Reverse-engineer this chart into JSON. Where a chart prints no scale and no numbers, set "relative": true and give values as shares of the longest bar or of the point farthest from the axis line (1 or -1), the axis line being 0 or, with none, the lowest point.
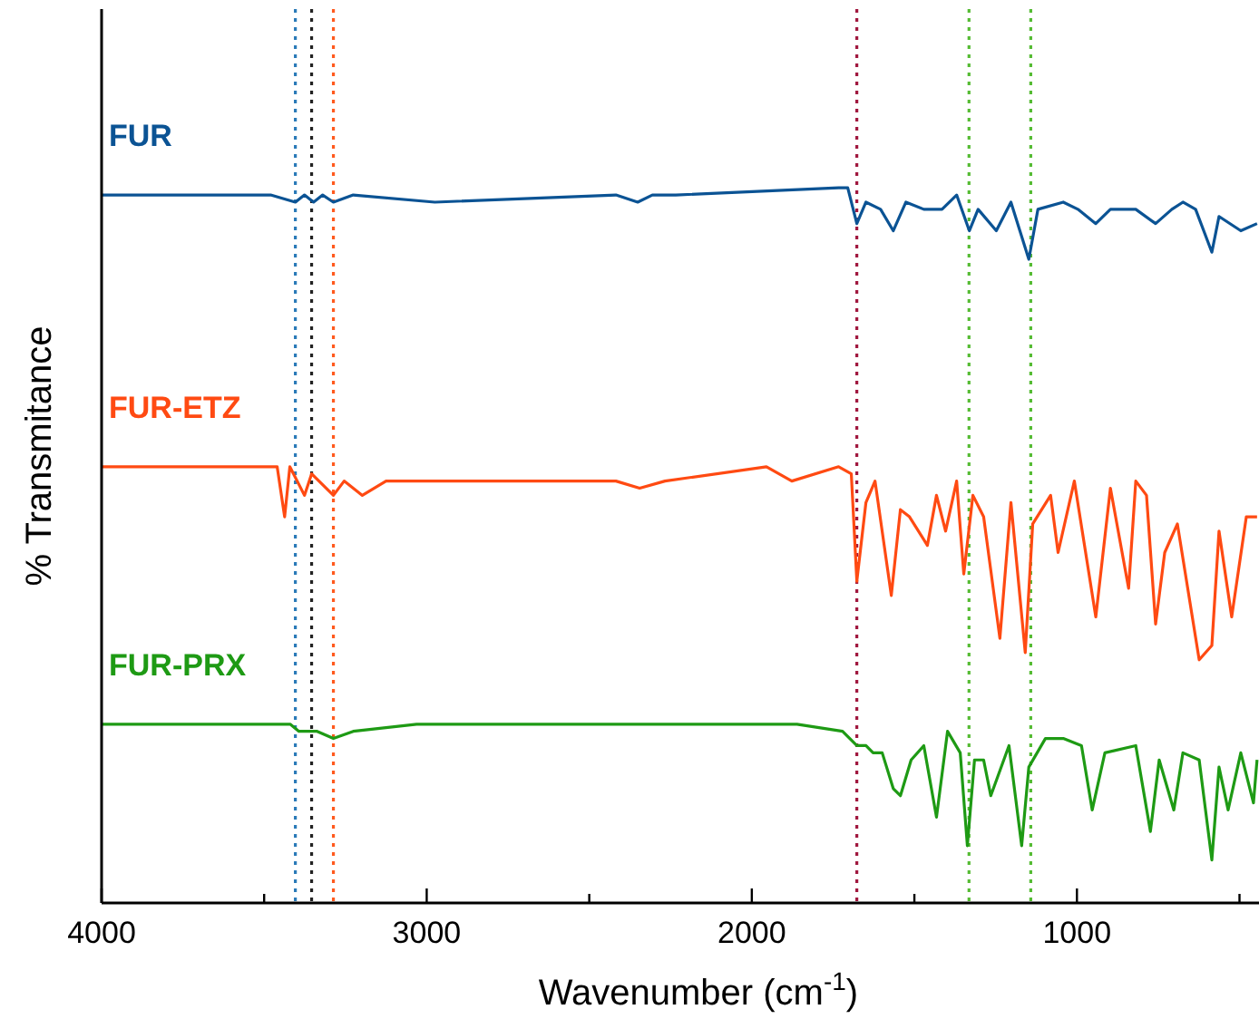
{
  "chart_data": {
    "type": "line",
    "relative": true,
    "xlabel": "Wavenumber (cm$^{-1}$)",
    "ylabel": "% Transmitance",
    "xlim": [
      4000,
      440
    ],
    "xticks": [
      4000,
      {
        "value": 3500,
        "label": null
      },
      3000,
      {
        "value": 2500,
        "label": null
      },
      2000,
      {
        "value": 1500,
        "label": null
      },
      1000,
      {
        "value": 500,
        "label": null
      }
    ],
    "grid": false,
    "marker": "none",
    "line_style": "solid",
    "tick_labels": "x",
    "ref_lines": [
      {
        "axis": "x",
        "value": 3404,
        "color": "#2a7ab8",
        "line_style": "dotted"
      },
      {
        "axis": "x",
        "value": 3354,
        "color": "#222222",
        "line_style": "dotted"
      },
      {
        "axis": "x",
        "value": 3287,
        "color": "#ff5a1e",
        "line_style": "dotted"
      },
      {
        "axis": "x",
        "value": 1677,
        "color": "#a0173e",
        "line_style": "dotted"
      },
      {
        "axis": "x",
        "value": 1332,
        "color": "#55bb33",
        "line_style": "dotted"
      },
      {
        "axis": "x",
        "value": 1142,
        "color": "#55bb33",
        "line_style": "dotted"
      }
    ],
    "series": [
      {
        "name": "FUR",
        "color": "#0b5394",
        "x": [
          4000,
          3480,
          3404,
          3376,
          3348,
          3320,
          3287,
          3226,
          2975,
          2418,
          2351,
          2306,
          2234,
          1733,
          1705,
          1677,
          1649,
          1604,
          1565,
          1526,
          1471,
          1415,
          1370,
          1331,
          1304,
          1248,
          1203,
          1148,
          1120,
          1042,
          997,
          942,
          897,
          819,
          758,
          708,
          674,
          635,
          585,
          563,
          496,
          446
        ],
        "values": [
          0.99,
          0.99,
          0.98,
          0.99,
          0.98,
          0.99,
          0.98,
          0.99,
          0.98,
          0.99,
          0.98,
          0.99,
          0.99,
          1.0,
          1.0,
          0.95,
          0.98,
          0.97,
          0.94,
          0.98,
          0.97,
          0.97,
          0.99,
          0.94,
          0.97,
          0.94,
          0.98,
          0.9,
          0.97,
          0.98,
          0.97,
          0.95,
          0.97,
          0.97,
          0.95,
          0.97,
          0.98,
          0.97,
          0.91,
          0.96,
          0.94,
          0.95
        ]
      },
      {
        "name": "FUR-ETZ",
        "color": "#ff4a12",
        "x": [
          4000,
          3460,
          3437,
          3421,
          3376,
          3354,
          3287,
          3254,
          3198,
          3125,
          2986,
          2791,
          2418,
          2345,
          2267,
          1955,
          1877,
          1733,
          1694,
          1677,
          1649,
          1621,
          1571,
          1543,
          1515,
          1460,
          1432,
          1404,
          1370,
          1348,
          1320,
          1287,
          1237,
          1203,
          1159,
          1136,
          1081,
          1058,
          1008,
          942,
          897,
          841,
          819,
          786,
          758,
          730,
          691,
          624,
          585,
          563,
          524,
          479,
          446
        ],
        "values": [
          0.61,
          0.61,
          0.54,
          0.61,
          0.57,
          0.6,
          0.57,
          0.59,
          0.57,
          0.59,
          0.59,
          0.59,
          0.59,
          0.58,
          0.59,
          0.61,
          0.59,
          0.61,
          0.6,
          0.45,
          0.56,
          0.59,
          0.43,
          0.55,
          0.54,
          0.5,
          0.57,
          0.52,
          0.59,
          0.46,
          0.57,
          0.54,
          0.37,
          0.56,
          0.35,
          0.53,
          0.57,
          0.49,
          0.59,
          0.4,
          0.58,
          0.44,
          0.59,
          0.57,
          0.39,
          0.49,
          0.53,
          0.34,
          0.36,
          0.52,
          0.4,
          0.54,
          0.54
        ]
      },
      {
        "name": "FUR-PRX",
        "color": "#1e9a14",
        "x": [
          4000,
          3420,
          3393,
          3337,
          3287,
          3226,
          3031,
          1861,
          1721,
          1677,
          1649,
          1627,
          1599,
          1565,
          1543,
          1510,
          1471,
          1432,
          1398,
          1359,
          1337,
          1315,
          1287,
          1265,
          1209,
          1170,
          1148,
          1097,
          1042,
          986,
          953,
          914,
          819,
          774,
          747,
          702,
          674,
          624,
          585,
          563,
          535,
          496,
          457,
          446
        ],
        "values": [
          0.25,
          0.25,
          0.24,
          0.24,
          0.23,
          0.24,
          0.25,
          0.25,
          0.24,
          0.22,
          0.22,
          0.21,
          0.21,
          0.16,
          0.15,
          0.2,
          0.22,
          0.12,
          0.24,
          0.21,
          0.08,
          0.2,
          0.2,
          0.15,
          0.22,
          0.08,
          0.19,
          0.23,
          0.23,
          0.22,
          0.13,
          0.21,
          0.22,
          0.1,
          0.2,
          0.13,
          0.21,
          0.2,
          0.06,
          0.19,
          0.13,
          0.21,
          0.14,
          0.2
        ]
      }
    ]
  }
}
